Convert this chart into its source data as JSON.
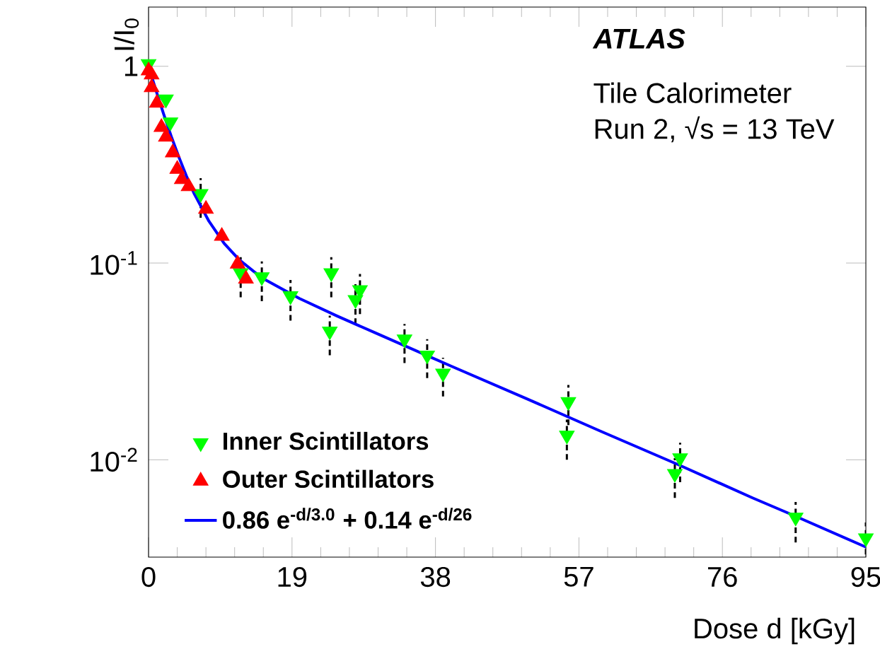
{
  "chart_data": {
    "type": "scatter",
    "xlabel": "Dose d [kGy]",
    "ylabel": "I/I$_{0}$",
    "log": "y",
    "xlim": [
      0,
      95
    ],
    "xticks": [
      0,
      19,
      38,
      57,
      76,
      95
    ],
    "ylim": [
      0.0032,
      2.0
    ],
    "yticks": [
      {
        "value": 0.01,
        "label": "10$^{-2}$"
      },
      {
        "value": 0.1,
        "label": "10$^{-1}$"
      },
      {
        "value": 1,
        "label": "1"
      }
    ],
    "legend": "bottom left",
    "annotations": [
      "ATLAS",
      "Tile Calorimeter",
      "Run 2, √s = 13 TeV"
    ],
    "series": [
      {
        "name": "Inner Scintillators",
        "marker": "triangle-down",
        "color": "#00ff00",
        "x": [
          0,
          2.3,
          2.9,
          6.9,
          12.2,
          15.0,
          18.8,
          24.2,
          24.0,
          27.4,
          28.0,
          33.9,
          36.9,
          39.0,
          55.6,
          55.4,
          70.4,
          69.7,
          85.7,
          95
        ],
        "values": [
          1.03,
          0.68,
          0.52,
          0.225,
          0.089,
          0.085,
          0.068,
          0.089,
          0.045,
          0.065,
          0.073,
          0.041,
          0.034,
          0.0275,
          0.0197,
          0.0133,
          0.0102,
          0.0085,
          0.0051,
          0.004
        ],
        "errors": [
          null,
          null,
          null,
          [
            0.17,
            0.27
          ],
          [
            0.067,
            0.107
          ],
          [
            0.064,
            0.102
          ],
          [
            0.051,
            0.082
          ],
          [
            0.067,
            0.107
          ],
          [
            0.034,
            0.054
          ],
          [
            0.049,
            0.078
          ],
          [
            0.055,
            0.088
          ],
          [
            0.031,
            0.049
          ],
          [
            0.026,
            0.041
          ],
          [
            0.021,
            0.033
          ],
          [
            0.015,
            0.024
          ],
          [
            0.01,
            0.016
          ],
          [
            0.0077,
            0.0122
          ],
          [
            0.0064,
            0.0102
          ],
          [
            0.0038,
            0.0061
          ],
          [
            0.0033,
            0.0048
          ]
        ]
      },
      {
        "name": "Outer Scintillators",
        "marker": "triangle",
        "color": "#ff0000",
        "x": [
          0,
          0.4,
          0.4,
          1.1,
          1.7,
          2.3,
          3.2,
          3.8,
          4.4,
          5.3,
          7.6,
          9.7,
          11.8,
          12.9
        ],
        "values": [
          0.95,
          0.905,
          0.78,
          0.65,
          0.49,
          0.437,
          0.364,
          0.3,
          0.266,
          0.245,
          0.188,
          0.137,
          0.099,
          0.083
        ]
      },
      {
        "name": "0.86 e$^{-d/3.0}$ + 0.14 e$^{-d/26}$",
        "type": "line",
        "marker": "none",
        "color": "#0000ff",
        "x": [
          0,
          1,
          2,
          3,
          4,
          5,
          6,
          8,
          10,
          12,
          15,
          20,
          25,
          30,
          40,
          50,
          60,
          70,
          80,
          85,
          95
        ],
        "values": [
          1.0,
          0.751,
          0.571,
          0.441,
          0.347,
          0.278,
          0.227,
          0.163,
          0.126,
          0.104,
          0.084,
          0.066,
          0.0537,
          0.0442,
          0.03,
          0.0205,
          0.0139,
          0.0095,
          0.0064,
          0.0053,
          0.0036
        ]
      }
    ]
  }
}
